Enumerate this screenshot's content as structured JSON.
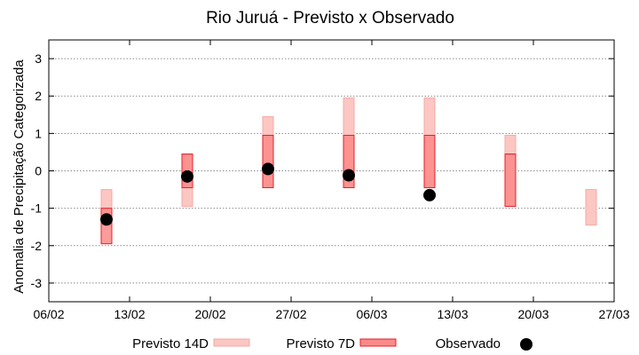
{
  "chart_data": {
    "type": "range-bar",
    "title": "Rio Juruá - Previsto x Observado",
    "xlabel": "",
    "ylabel": "Anomalia de Precipitação Categorizada",
    "ylim": [
      -3.5,
      3.5
    ],
    "yticks": [
      -3,
      -2,
      -1,
      0,
      1,
      2,
      3
    ],
    "xlim": [
      "2022-02-06",
      "2022-03-27"
    ],
    "xticks": [
      {
        "date": "2022-02-06",
        "label": "06/02"
      },
      {
        "date": "2022-02-13",
        "label": "13/02"
      },
      {
        "date": "2022-02-20",
        "label": "20/02"
      },
      {
        "date": "2022-02-27",
        "label": "27/02"
      },
      {
        "date": "2022-03-06",
        "label": "06/03"
      },
      {
        "date": "2022-03-13",
        "label": "13/03"
      },
      {
        "date": "2022-03-20",
        "label": "20/03"
      },
      {
        "date": "2022-03-27",
        "label": "27/03"
      }
    ],
    "grid": "horizontal",
    "legend_position": "bottom",
    "series": [
      {
        "name": "Previsto 14D",
        "color": "#f4aaa6",
        "fill": "#fcc7c3",
        "points": [
          {
            "x": "2022-02-11",
            "low": -1.45,
            "high": -0.5
          },
          {
            "x": "2022-02-18",
            "low": -0.95,
            "high": 0.45
          },
          {
            "x": "2022-02-25",
            "low": -0.45,
            "high": 1.45
          },
          {
            "x": "2022-03-04",
            "low": -0.45,
            "high": 1.95
          },
          {
            "x": "2022-03-11",
            "low": -0.45,
            "high": 1.95
          },
          {
            "x": "2022-03-18",
            "low": -0.95,
            "high": 0.95
          },
          {
            "x": "2022-03-25",
            "low": -1.45,
            "high": -0.5
          }
        ]
      },
      {
        "name": "Previsto 7D",
        "color": "#e0202a",
        "fill": "#fb8a88",
        "points": [
          {
            "x": "2022-02-11",
            "low": -1.95,
            "high": -1.0
          },
          {
            "x": "2022-02-18",
            "low": -0.45,
            "high": 0.45
          },
          {
            "x": "2022-02-25",
            "low": -0.45,
            "high": 0.95
          },
          {
            "x": "2022-03-04",
            "low": -0.45,
            "high": 0.95
          },
          {
            "x": "2022-03-11",
            "low": -0.45,
            "high": 0.95
          },
          {
            "x": "2022-03-18",
            "low": -0.95,
            "high": 0.45
          }
        ]
      },
      {
        "name": "Observado",
        "color": "#000000",
        "points": [
          {
            "x": "2022-02-11",
            "y": -1.3
          },
          {
            "x": "2022-02-18",
            "y": -0.15
          },
          {
            "x": "2022-02-25",
            "y": 0.05
          },
          {
            "x": "2022-03-04",
            "y": -0.12
          },
          {
            "x": "2022-03-11",
            "y": -0.65
          }
        ]
      }
    ]
  }
}
